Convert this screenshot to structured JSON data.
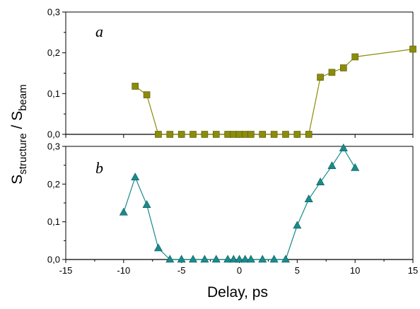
{
  "chart_data": [
    {
      "id": "a",
      "type": "line",
      "panel_label": "a",
      "xlim": [
        -15,
        15
      ],
      "ylim": [
        0,
        0.3
      ],
      "yticks": [
        0.0,
        0.1,
        0.2,
        0.3
      ],
      "ytick_labels": [
        "0,0",
        "0,1",
        "0,2",
        "0,3"
      ],
      "marker": "square",
      "color": "#8b8b0c",
      "series": [
        {
          "x": [
            -9,
            -8,
            -7,
            -6,
            -5,
            -4,
            -3,
            -2,
            -1,
            -0.5,
            0,
            0.5,
            1,
            2,
            3,
            4,
            5,
            6,
            7,
            8,
            9,
            10,
            15
          ],
          "y": [
            0.118,
            0.097,
            0,
            0,
            0,
            0,
            0,
            0,
            0,
            0,
            0,
            0,
            0,
            0,
            0,
            0,
            0,
            0,
            0.14,
            0.152,
            0.163,
            0.19,
            0.209
          ]
        }
      ]
    },
    {
      "id": "b",
      "type": "line",
      "panel_label": "b",
      "xlim": [
        -15,
        15
      ],
      "ylim": [
        0,
        0.3
      ],
      "yticks": [
        0.0,
        0.1,
        0.2,
        0.3
      ],
      "ytick_labels": [
        "0,0",
        "0,1",
        "0,2",
        "0,3"
      ],
      "marker": "triangle",
      "color": "#1a8a8a",
      "series": [
        {
          "x": [
            -10,
            -9,
            -8,
            -7,
            -6,
            -5,
            -4,
            -3,
            -2,
            -1,
            -0.5,
            0,
            0.5,
            1,
            2,
            3,
            4,
            5,
            6,
            7,
            8,
            9,
            10
          ],
          "y": [
            0.125,
            0.218,
            0.145,
            0.03,
            0,
            0,
            0,
            0,
            0,
            0,
            0,
            0,
            0,
            0,
            0,
            0,
            0,
            0.09,
            0.16,
            0.205,
            0.248,
            0.295,
            0.243
          ]
        }
      ]
    }
  ],
  "shared": {
    "xticks": [
      -15,
      -10,
      -5,
      0,
      5,
      10,
      15
    ],
    "xtick_labels": [
      "-15",
      "-10",
      "-5",
      "0",
      "5",
      "10",
      "15"
    ],
    "xlabel": "Delay, ps",
    "ylabel_main": "S",
    "ylabel_sub1": "structure",
    "ylabel_mid": " / S",
    "ylabel_sub2": "beam"
  }
}
